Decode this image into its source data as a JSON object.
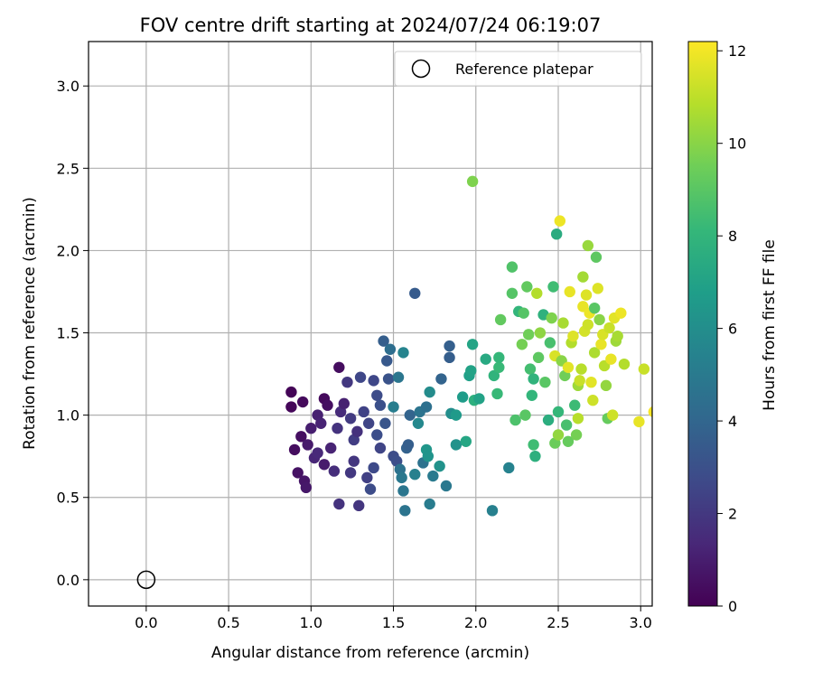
{
  "chart_data": {
    "type": "scatter",
    "title": "FOV centre drift starting at 2024/07/24 06:19:07",
    "xlabel": "Angular distance from reference (arcmin)",
    "ylabel": "Rotation from reference (arcmin)",
    "xlim": [
      -0.35,
      3.07
    ],
    "ylim": [
      -0.16,
      3.27
    ],
    "xticks": [
      "0.0",
      "0.5",
      "1.0",
      "1.5",
      "2.0",
      "2.5",
      "3.0"
    ],
    "yticks": [
      "0.0",
      "0.5",
      "1.0",
      "1.5",
      "2.0",
      "2.5",
      "3.0"
    ],
    "grid": true,
    "legend": {
      "placement": "top-right",
      "label": "Reference platepar"
    },
    "reference_point": {
      "x": 0.0,
      "y": 0.0
    },
    "colorbar": {
      "label": "Hours from first FF file",
      "range": [
        0,
        12.2
      ],
      "ticks": [
        "0",
        "2",
        "4",
        "6",
        "8",
        "10",
        "12"
      ],
      "colormap": [
        "#440154",
        "#482878",
        "#3e4a89",
        "#31688e",
        "#26828e",
        "#1f9e89",
        "#35b779",
        "#6ece58",
        "#b5de2b",
        "#fde725"
      ]
    },
    "points": [
      [
        0.88,
        1.14,
        0.1
      ],
      [
        0.88,
        1.05,
        0.2
      ],
      [
        0.95,
        1.08,
        0.3
      ],
      [
        0.9,
        0.79,
        0.4
      ],
      [
        0.94,
        0.87,
        0.5
      ],
      [
        0.92,
        0.65,
        0.6
      ],
      [
        0.96,
        0.6,
        0.7
      ],
      [
        0.97,
        0.56,
        0.8
      ],
      [
        0.98,
        0.82,
        0.9
      ],
      [
        1.0,
        0.92,
        1.0
      ],
      [
        1.04,
        1.0,
        1.1
      ],
      [
        1.06,
        0.95,
        1.2
      ],
      [
        1.08,
        1.1,
        0.3
      ],
      [
        1.1,
        1.06,
        0.5
      ],
      [
        1.02,
        0.74,
        1.3
      ],
      [
        1.04,
        0.77,
        1.4
      ],
      [
        1.08,
        0.7,
        0.9
      ],
      [
        1.12,
        0.8,
        1.2
      ],
      [
        1.14,
        0.66,
        1.6
      ],
      [
        1.16,
        0.92,
        1.8
      ],
      [
        1.18,
        1.02,
        1.5
      ],
      [
        1.17,
        1.29,
        0.4
      ],
      [
        1.2,
        1.07,
        1.1
      ],
      [
        1.17,
        0.46,
        1.8
      ],
      [
        1.22,
        1.2,
        2.0
      ],
      [
        1.24,
        0.98,
        2.1
      ],
      [
        1.26,
        0.85,
        2.2
      ],
      [
        1.24,
        0.65,
        2.0
      ],
      [
        1.26,
        0.72,
        1.9
      ],
      [
        1.28,
        0.9,
        1.7
      ],
      [
        1.29,
        0.45,
        1.9
      ],
      [
        1.3,
        1.23,
        2.6
      ],
      [
        1.32,
        1.02,
        2.4
      ],
      [
        1.34,
        0.62,
        2.3
      ],
      [
        1.36,
        0.55,
        2.8
      ],
      [
        1.35,
        0.95,
        2.5
      ],
      [
        1.38,
        0.68,
        2.7
      ],
      [
        1.38,
        1.21,
        2.6
      ],
      [
        1.4,
        1.12,
        2.8
      ],
      [
        1.4,
        0.88,
        2.9
      ],
      [
        1.42,
        1.06,
        3.0
      ],
      [
        1.42,
        0.8,
        2.5
      ],
      [
        1.44,
        1.45,
        3.6
      ],
      [
        1.45,
        0.95,
        3.2
      ],
      [
        1.46,
        1.33,
        3.4
      ],
      [
        1.48,
        1.4,
        4.4
      ],
      [
        1.47,
        1.22,
        3.1
      ],
      [
        1.5,
        0.75,
        2.8
      ],
      [
        1.5,
        1.05,
        5.2
      ],
      [
        1.52,
        0.72,
        2.9
      ],
      [
        1.53,
        1.23,
        4.8
      ],
      [
        1.54,
        0.67,
        4.6
      ],
      [
        1.55,
        0.62,
        4.9
      ],
      [
        1.56,
        1.38,
        5.5
      ],
      [
        1.56,
        0.54,
        4.8
      ],
      [
        1.57,
        0.42,
        4.7
      ],
      [
        1.58,
        0.8,
        3.8
      ],
      [
        1.59,
        0.82,
        3.6
      ],
      [
        1.6,
        1.0,
        3.9
      ],
      [
        1.63,
        1.74,
        3.5
      ],
      [
        1.63,
        0.64,
        5.3
      ],
      [
        1.65,
        0.95,
        5.7
      ],
      [
        1.66,
        1.02,
        4.7
      ],
      [
        1.68,
        0.71,
        4.6
      ],
      [
        1.7,
        1.05,
        4.5
      ],
      [
        1.7,
        0.79,
        6.4
      ],
      [
        1.71,
        0.75,
        6.3
      ],
      [
        1.72,
        1.14,
        5.9
      ],
      [
        1.72,
        0.46,
        5.1
      ],
      [
        1.74,
        0.63,
        5.0
      ],
      [
        1.78,
        0.69,
        6.2
      ],
      [
        1.79,
        1.22,
        3.9
      ],
      [
        1.82,
        0.57,
        4.9
      ],
      [
        1.84,
        1.42,
        3.7
      ],
      [
        1.84,
        1.35,
        3.6
      ],
      [
        1.85,
        1.01,
        6.0
      ],
      [
        1.88,
        1.0,
        6.6
      ],
      [
        1.88,
        0.82,
        6.2
      ],
      [
        1.92,
        1.11,
        6.7
      ],
      [
        1.94,
        0.84,
        7.2
      ],
      [
        1.96,
        1.24,
        6.9
      ],
      [
        1.97,
        1.27,
        7.0
      ],
      [
        1.98,
        1.43,
        7.1
      ],
      [
        1.98,
        2.42,
        9.8
      ],
      [
        1.99,
        1.09,
        7.7
      ],
      [
        2.02,
        1.1,
        7.0
      ],
      [
        2.06,
        1.34,
        7.4
      ],
      [
        2.1,
        0.42,
        5.3
      ],
      [
        2.11,
        1.24,
        7.9
      ],
      [
        2.13,
        1.13,
        8.2
      ],
      [
        2.14,
        1.29,
        8.2
      ],
      [
        2.14,
        1.35,
        8.1
      ],
      [
        2.15,
        1.58,
        9.2
      ],
      [
        2.22,
        1.9,
        8.8
      ],
      [
        2.2,
        0.68,
        5.4
      ],
      [
        2.22,
        1.74,
        8.9
      ],
      [
        2.24,
        0.97,
        8.7
      ],
      [
        2.26,
        1.63,
        8.0
      ],
      [
        2.28,
        1.43,
        9.6
      ],
      [
        2.29,
        1.62,
        8.9
      ],
      [
        2.3,
        1.0,
        9.0
      ],
      [
        2.31,
        1.78,
        9.2
      ],
      [
        2.32,
        1.49,
        9.5
      ],
      [
        2.33,
        1.28,
        8.5
      ],
      [
        2.34,
        1.12,
        8.0
      ],
      [
        2.35,
        1.22,
        7.9
      ],
      [
        2.35,
        0.82,
        8.4
      ],
      [
        2.36,
        0.75,
        7.7
      ],
      [
        2.37,
        1.74,
        10.8
      ],
      [
        2.38,
        1.35,
        9.1
      ],
      [
        2.39,
        1.5,
        10.1
      ],
      [
        2.41,
        1.61,
        7.8
      ],
      [
        2.42,
        1.2,
        9.0
      ],
      [
        2.44,
        0.97,
        7.6
      ],
      [
        2.45,
        1.44,
        8.6
      ],
      [
        2.46,
        1.59,
        9.8
      ],
      [
        2.47,
        1.78,
        8.4
      ],
      [
        2.48,
        1.36,
        11.5
      ],
      [
        2.48,
        0.83,
        9.4
      ],
      [
        2.49,
        2.1,
        7.5
      ],
      [
        2.5,
        1.02,
        8.1
      ],
      [
        2.5,
        0.88,
        10.2
      ],
      [
        2.51,
        2.18,
        11.9
      ],
      [
        2.52,
        1.33,
        10.0
      ],
      [
        2.53,
        1.56,
        10.6
      ],
      [
        2.54,
        1.24,
        9.5
      ],
      [
        2.55,
        0.94,
        8.6
      ],
      [
        2.56,
        1.29,
        11.7
      ],
      [
        2.56,
        0.84,
        9.3
      ],
      [
        2.57,
        1.75,
        11.8
      ],
      [
        2.58,
        1.44,
        10.8
      ],
      [
        2.59,
        1.48,
        11.6
      ],
      [
        2.6,
        1.06,
        8.3
      ],
      [
        2.61,
        0.88,
        9.6
      ],
      [
        2.62,
        1.18,
        10.4
      ],
      [
        2.62,
        0.98,
        10.9
      ],
      [
        2.63,
        1.21,
        11.2
      ],
      [
        2.64,
        1.28,
        10.9
      ],
      [
        2.65,
        1.84,
        10.5
      ],
      [
        2.65,
        1.66,
        11.8
      ],
      [
        2.66,
        1.51,
        11.4
      ],
      [
        2.67,
        1.73,
        11.6
      ],
      [
        2.68,
        1.55,
        11.3
      ],
      [
        2.68,
        2.03,
        10.3
      ],
      [
        2.69,
        1.62,
        11.9
      ],
      [
        2.7,
        1.2,
        11.7
      ],
      [
        2.71,
        1.09,
        11.3
      ],
      [
        2.72,
        1.38,
        10.7
      ],
      [
        2.72,
        1.65,
        9.0
      ],
      [
        2.73,
        1.96,
        9.1
      ],
      [
        2.74,
        1.77,
        11.6
      ],
      [
        2.75,
        1.58,
        10.0
      ],
      [
        2.76,
        1.43,
        11.8
      ],
      [
        2.77,
        1.49,
        11.5
      ],
      [
        2.78,
        1.3,
        10.9
      ],
      [
        2.79,
        1.18,
        10.2
      ],
      [
        2.8,
        0.98,
        9.3
      ],
      [
        2.81,
        1.53,
        11.2
      ],
      [
        2.82,
        1.34,
        11.8
      ],
      [
        2.83,
        1.0,
        11.3
      ],
      [
        2.84,
        1.59,
        11.7
      ],
      [
        2.85,
        1.45,
        10.4
      ],
      [
        2.86,
        1.48,
        10.6
      ],
      [
        2.88,
        1.62,
        11.9
      ],
      [
        2.9,
        1.31,
        10.8
      ],
      [
        2.99,
        0.96,
        11.8
      ],
      [
        3.02,
        1.28,
        11.2
      ],
      [
        3.08,
        1.02,
        12.1
      ]
    ]
  }
}
